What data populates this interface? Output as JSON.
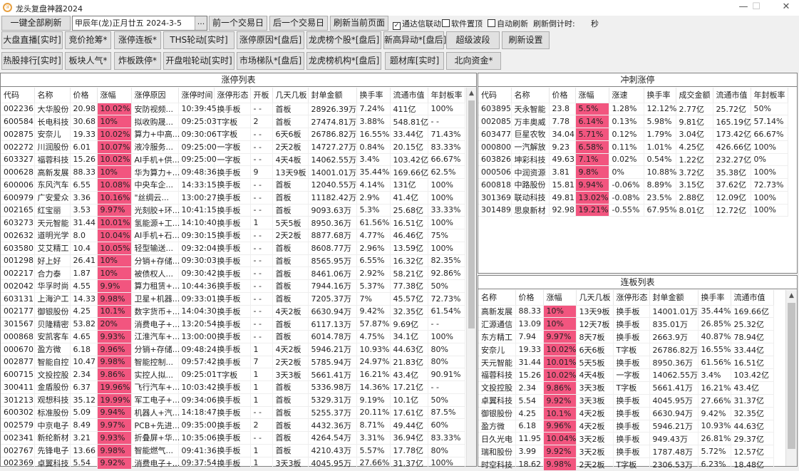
{
  "app": {
    "title": "龙头复盘神器2024",
    "logo_glyph": "③"
  },
  "window_controls": {
    "minimize": "—",
    "maximize": "☐",
    "close": "✕"
  },
  "toolbar": {
    "refresh_all": "一键全部刷新",
    "date_value": "甲辰年(龙)正月廿五  2024-3-5",
    "date_picker": "...",
    "prev_day": "前一个交易日",
    "next_day": "后一个交易日",
    "refresh_page": "刷新当前页面",
    "checkboxes": [
      {
        "label": "通达信联动",
        "checked": true
      },
      {
        "label": "软件置顶",
        "checked": false
      },
      {
        "label": "自动刷新",
        "checked": false
      }
    ],
    "countdown_label": "刷新倒计时:",
    "countdown_unit": "秒",
    "row2": [
      "大盘直播[实时]",
      "竞价抢筹*",
      "涨停连板*",
      "THS轮动[实时]",
      "涨停原因*[盘后]",
      "龙虎榜个股*[盘后]",
      "新高异动*[盘后]",
      "超级波段",
      "刷新设置"
    ],
    "row3": [
      "热股排行[实时]",
      "板块人气*",
      "炸板跌停*",
      "开盘啦轮动[实时]",
      "市场梯队*[盘后]",
      "龙虎榜机构*[盘后]",
      "题材库[实时]",
      "北向资金*"
    ]
  },
  "colors": {
    "highlight": "#f2557f"
  },
  "limit_up": {
    "title": "涨停列表",
    "columns": [
      "代码",
      "名称",
      "价格",
      "涨幅",
      "涨停原因",
      "涨停时间",
      "涨停形态",
      "开板",
      "几天几板",
      "封单金额",
      "换手率",
      "流通市值",
      "年封板率"
    ],
    "rows": [
      [
        "002236",
        "大华股份",
        "20.98",
        "10.02%",
        "安防视频...",
        "10:39:45",
        "换手板",
        "- -",
        "首板",
        "28926.39万",
        "7.24%",
        "411亿",
        "100%"
      ],
      [
        "600584",
        "长电科技",
        "30.68",
        "10%",
        "拟收购晟...",
        "09:25:03",
        "T字板",
        "2",
        "首板",
        "27474.81万",
        "3.88%",
        "548.81亿",
        "- -"
      ],
      [
        "002875",
        "安奈儿",
        "19.33",
        "10.02%",
        "算力+中高...",
        "09:30:06",
        "T字板",
        "- -",
        "6天6板",
        "26786.82万",
        "16.55%",
        "33.44亿",
        "71.43%"
      ],
      [
        "002272",
        "川润股份",
        "6.01",
        "10.07%",
        "液冷服务...",
        "09:25:00",
        "一字板",
        "- -",
        "2天2板",
        "14727.27万",
        "0.84%",
        "20.15亿",
        "83.33%"
      ],
      [
        "603327",
        "福蓉科技",
        "15.26",
        "10.02%",
        "AI手机+供...",
        "09:25:00",
        "一字板",
        "- -",
        "4天4板",
        "14062.55万",
        "3.4%",
        "103.42亿",
        "66.67%"
      ],
      [
        "000628",
        "高新发展",
        "88.33",
        "10%",
        "华为算力+...",
        "09:48:36",
        "换手板",
        "9",
        "13天9板",
        "14001.01万",
        "35.44%",
        "169.66亿",
        "62.5%"
      ],
      [
        "600006",
        "东风汽车",
        "6.55",
        "10.08%",
        "中央车企...",
        "14:33:15",
        "换手板",
        "- -",
        "首板",
        "12040.55万",
        "4.14%",
        "131亿",
        "100%"
      ],
      [
        "600979",
        "广安爱众",
        "3.36",
        "10.16%",
        "\"丝绸云...",
        "13:00:27",
        "换手板",
        "- -",
        "首板",
        "11182.42万",
        "2.9%",
        "41.4亿",
        "100%"
      ],
      [
        "002165",
        "红宝丽",
        "3.53",
        "9.97%",
        "光刻胶+环...",
        "10:41:15",
        "换手板",
        "- -",
        "首板",
        "9093.63万",
        "5.3%",
        "25.68亿",
        "33.33%"
      ],
      [
        "603273",
        "天元智能",
        "31.44",
        "10.01%",
        "氢能源+工...",
        "14:10:40",
        "换手板",
        "1",
        "5天5板",
        "8950.36万",
        "61.56%",
        "16.51亿",
        "100%"
      ],
      [
        "002632",
        "道明光学",
        "8.0",
        "10.04%",
        "AI手机+石...",
        "09:30:15",
        "换手板",
        "- -",
        "2天2板",
        "8877.68万",
        "4.77%",
        "46.46亿",
        "75%"
      ],
      [
        "603580",
        "艾艾精工",
        "10.4",
        "10.05%",
        "轻型输送...",
        "09:32:04",
        "换手板",
        "- -",
        "首板",
        "8608.77万",
        "2.96%",
        "13.59亿",
        "100%"
      ],
      [
        "001298",
        "好上好",
        "26.41",
        "10%",
        "分销+存储...",
        "09:30:03",
        "换手板",
        "- -",
        "首板",
        "8565.95万",
        "6.55%",
        "16.32亿",
        "82.35%"
      ],
      [
        "002217",
        "合力泰",
        "1.87",
        "10%",
        "被债权人...",
        "09:30:42",
        "换手板",
        "- -",
        "首板",
        "8461.06万",
        "2.92%",
        "58.21亿",
        "92.86%"
      ],
      [
        "002042",
        "华孚时尚",
        "4.55",
        "9.9%",
        "算力租赁+...",
        "10:44:36",
        "换手板",
        "- -",
        "首板",
        "7944.16万",
        "5.37%",
        "77.38亿",
        "50%"
      ],
      [
        "603131",
        "上海沪工",
        "14.33",
        "9.98%",
        "卫星+机器...",
        "09:33:01",
        "换手板",
        "- -",
        "首板",
        "7205.37万",
        "7%",
        "45.57亿",
        "72.73%"
      ],
      [
        "002177",
        "御银股份",
        "4.25",
        "10.1%",
        "数字货币+...",
        "14:04:30",
        "换手板",
        "- -",
        "4天2板",
        "6630.94万",
        "9.42%",
        "32.35亿",
        "61.54%"
      ],
      [
        "301567",
        "贝隆精密",
        "53.82",
        "20%",
        "消费电子+...",
        "13:20:54",
        "换手板",
        "- -",
        "首板",
        "6117.13万",
        "57.87%",
        "9.69亿",
        "- -"
      ],
      [
        "000868",
        "安凯客车",
        "4.65",
        "9.93%",
        "江淮汽车+...",
        "13:00:00",
        "换手板",
        "- -",
        "首板",
        "6014.78万",
        "4.75%",
        "34.1亿",
        "100%"
      ],
      [
        "000670",
        "盈方微",
        "6.18",
        "9.96%",
        "分销+存储...",
        "09:48:24",
        "换手板",
        "1",
        "4天2板",
        "5946.21万",
        "10.93%",
        "44.63亿",
        "80%"
      ],
      [
        "002877",
        "智能自控",
        "10.47",
        "9.98%",
        "智能控制...",
        "09:57:42",
        "换手板",
        "7",
        "2天2板",
        "5785.94万",
        "24.97%",
        "21.83亿",
        "80%"
      ],
      [
        "600715",
        "文投控股",
        "2.34",
        "9.86%",
        "实控人拟...",
        "09:25:01",
        "T字板",
        "1",
        "3天3板",
        "5661.41万",
        "16.21%",
        "43.4亿",
        "90.91%"
      ],
      [
        "300411",
        "金盾股份",
        "6.37",
        "19.96%",
        "飞行汽车+...",
        "10:03:42",
        "换手板",
        "1",
        "首板",
        "5336.98万",
        "14.36%",
        "17.21亿",
        "- -"
      ],
      [
        "301213",
        "观想科技",
        "35.12",
        "19.99%",
        "军工电子+...",
        "09:34:06",
        "换手板",
        "1",
        "首板",
        "5329.31万",
        "9.19%",
        "10.1亿",
        "50%"
      ],
      [
        "600302",
        "标准股份",
        "5.09",
        "9.94%",
        "机器人+汽...",
        "14:18:47",
        "换手板",
        "- -",
        "首板",
        "5255.37万",
        "20.11%",
        "17.61亿",
        "87.5%"
      ],
      [
        "002579",
        "中京电子",
        "8.49",
        "9.97%",
        "PCB+先进...",
        "09:35:00",
        "换手板",
        "2",
        "首板",
        "4432.36万",
        "8.71%",
        "49.44亿",
        "60%"
      ],
      [
        "002341",
        "新纶新材",
        "3.21",
        "9.93%",
        "折叠屏+华...",
        "10:35:06",
        "换手板",
        "- -",
        "首板",
        "4264.54万",
        "3.31%",
        "36.94亿",
        "83.33%"
      ],
      [
        "002767",
        "先锋电子",
        "13.66",
        "9.98%",
        "智能燃气...",
        "09:41:36",
        "换手板",
        "1",
        "首板",
        "4210.43万",
        "5.57%",
        "17.78亿",
        "80%"
      ],
      [
        "002369",
        "卓翼科技",
        "5.54",
        "9.92%",
        "消费电子+...",
        "09:37:54",
        "换手板",
        "1",
        "3天3板",
        "4045.95万",
        "27.66%",
        "31.37亿",
        "100%"
      ]
    ]
  },
  "rush_limit": {
    "title": "冲刺涨停",
    "columns": [
      "代码",
      "名称",
      "价格",
      "涨幅",
      "涨速",
      "换手率",
      "成交金额",
      "流通市值",
      "年封板率"
    ],
    "rows": [
      [
        "603895",
        "天永智能",
        "23.8",
        "5.5%",
        "1.28%",
        "12.12%",
        "2.77亿",
        "25.72亿",
        "50%"
      ],
      [
        "002085",
        "万丰奥威",
        "7.78",
        "6.14%",
        "0.13%",
        "5.98%",
        "9.81亿",
        "165.19亿",
        "57.14%"
      ],
      [
        "603477",
        "巨星农牧",
        "34.04",
        "5.71%",
        "0.12%",
        "1.79%",
        "3.04亿",
        "173.42亿",
        "66.67%"
      ],
      [
        "000800",
        "一汽解放",
        "9.23",
        "6.58%",
        "0.11%",
        "1.01%",
        "4.25亿",
        "426.66亿",
        "100%"
      ],
      [
        "603826",
        "坤彩科技",
        "49.63",
        "7.1%",
        "0.02%",
        "0.54%",
        "1.22亿",
        "232.27亿",
        "0%"
      ],
      [
        "000506",
        "中润资源",
        "3.81",
        "9.8%",
        "0%",
        "10.88%",
        "3.72亿",
        "35.38亿",
        "100%"
      ],
      [
        "600818",
        "中路股份",
        "15.81",
        "9.94%",
        "-0.06%",
        "8.89%",
        "3.15亿",
        "37.62亿",
        "72.73%"
      ],
      [
        "301369",
        "联动科技",
        "49.81",
        "13.02%",
        "-0.08%",
        "23.5%",
        "2.88亿",
        "12.09亿",
        "100%"
      ],
      [
        "301489",
        "思泉新材",
        "92.98",
        "19.21%",
        "-0.55%",
        "67.95%",
        "8.01亿",
        "12.72亿",
        "100%"
      ]
    ]
  },
  "consecutive": {
    "title": "连板列表",
    "columns": [
      "名称",
      "价格",
      "涨幅",
      "几天几板",
      "涨停形态",
      "封单金额",
      "换手率",
      "流通市值"
    ],
    "rows": [
      [
        "高新发展",
        "88.33",
        "10%",
        "13天9板",
        "换手板",
        "14001.01万",
        "35.44%",
        "169.66亿"
      ],
      [
        "汇源通信",
        "13.09",
        "10%",
        "12天7板",
        "换手板",
        "835.01万",
        "26.85%",
        "25.32亿"
      ],
      [
        "东方精工",
        "7.94",
        "9.97%",
        "8天7板",
        "换手板",
        "2663.9万",
        "40.87%",
        "78.94亿"
      ],
      [
        "安奈儿",
        "19.33",
        "10.02%",
        "6天6板",
        "T字板",
        "26786.82万",
        "16.55%",
        "33.44亿"
      ],
      [
        "天元智能",
        "31.44",
        "10.01%",
        "5天5板",
        "换手板",
        "8950.36万",
        "61.56%",
        "16.51亿"
      ],
      [
        "福蓉科技",
        "15.26",
        "10.02%",
        "4天4板",
        "一字板",
        "14062.55万",
        "3.4%",
        "103.42亿"
      ],
      [
        "文投控股",
        "2.34",
        "9.86%",
        "3天3板",
        "T字板",
        "5661.41万",
        "16.21%",
        "43.4亿"
      ],
      [
        "卓翼科技",
        "5.54",
        "9.92%",
        "3天3板",
        "换手板",
        "4045.95万",
        "27.66%",
        "31.37亿"
      ],
      [
        "御银股份",
        "4.25",
        "10.1%",
        "4天2板",
        "换手板",
        "6630.94万",
        "9.42%",
        "32.35亿"
      ],
      [
        "盈方微",
        "6.18",
        "9.96%",
        "4天2板",
        "换手板",
        "5946.21万",
        "10.93%",
        "44.63亿"
      ],
      [
        "日久光电",
        "11.95",
        "10.04%",
        "3天2板",
        "换手板",
        "949.43万",
        "26.81%",
        "29.37亿"
      ],
      [
        "瑞和股份",
        "3.99",
        "9.92%",
        "3天2板",
        "换手板",
        "1787.48万",
        "5.72%",
        "12.57亿"
      ],
      [
        "时空科技",
        "18.62",
        "9.98%",
        "2天2板",
        "T字板",
        "2306.53万",
        "6.23%",
        "18.48亿"
      ]
    ]
  }
}
